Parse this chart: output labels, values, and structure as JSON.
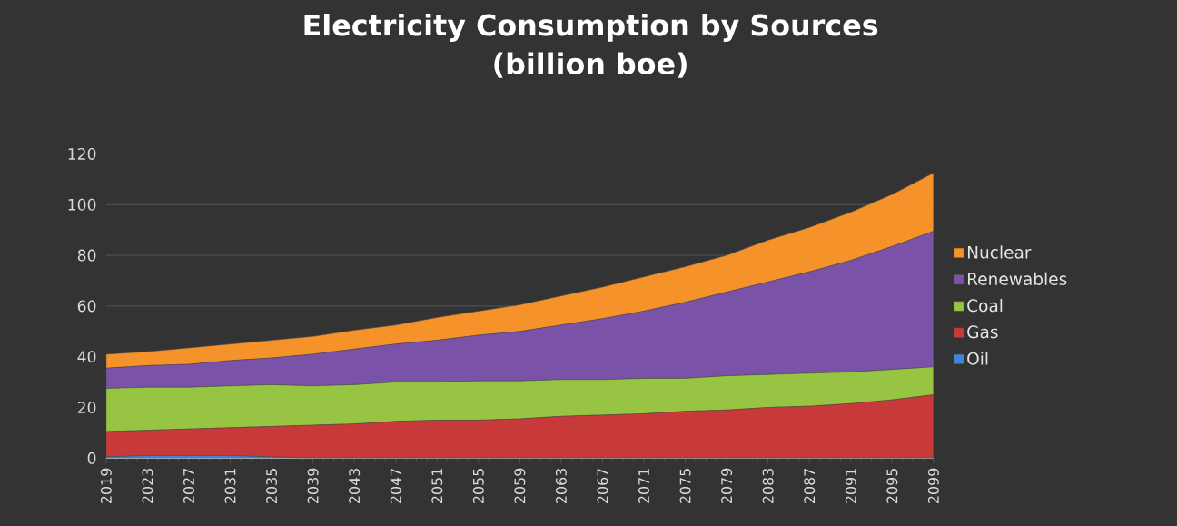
{
  "chart_data": {
    "type": "area",
    "title": "Electricity Consumption by Sources",
    "subtitle": "(billion boe)",
    "stacked": true,
    "x": [
      2019,
      2023,
      2027,
      2031,
      2035,
      2039,
      2043,
      2047,
      2051,
      2055,
      2059,
      2063,
      2067,
      2071,
      2075,
      2079,
      2083,
      2087,
      2091,
      2095,
      2099
    ],
    "series": [
      {
        "name": "Oil",
        "color": "#3f86d8",
        "values": [
          0.5,
          1,
          1,
          1,
          0.5,
          0,
          0,
          0,
          0,
          0,
          0,
          0,
          0,
          0,
          0,
          0,
          0,
          0,
          0,
          0,
          0
        ]
      },
      {
        "name": "Gas",
        "color": "#c83a3a",
        "values": [
          10,
          10,
          10.5,
          11,
          12,
          13,
          13.5,
          14.5,
          15,
          15,
          15.5,
          16.5,
          17,
          17.5,
          18.5,
          19,
          20,
          20.5,
          21.5,
          23,
          25
        ]
      },
      {
        "name": "Coal",
        "color": "#98c443",
        "values": [
          17,
          17,
          16.5,
          16.5,
          16.5,
          15.5,
          15.5,
          15.5,
          15,
          15.5,
          15,
          14.5,
          14,
          14,
          13,
          13.5,
          13,
          13,
          12.5,
          12,
          11
        ]
      },
      {
        "name": "Renewables",
        "color": "#7a52a8",
        "values": [
          8,
          8.5,
          9,
          10,
          10.5,
          12.5,
          14,
          15,
          16.5,
          18,
          19.5,
          21.5,
          24,
          26.5,
          30,
          33,
          36.5,
          40,
          44,
          48.5,
          53.5
        ]
      },
      {
        "name": "Nuclear",
        "color": "#f5922a",
        "values": [
          5.5,
          5.5,
          6.5,
          6.5,
          7,
          7,
          7.5,
          7.5,
          9,
          9.5,
          10.5,
          11.5,
          12.5,
          13.5,
          14,
          14.5,
          16.5,
          17.5,
          19,
          20.5,
          23
        ]
      }
    ],
    "xlim": [
      2019,
      2099
    ],
    "xticks": [
      2019,
      2023,
      2027,
      2031,
      2035,
      2039,
      2043,
      2047,
      2051,
      2055,
      2059,
      2063,
      2067,
      2071,
      2075,
      2079,
      2083,
      2087,
      2091,
      2095,
      2099
    ],
    "ylim": [
      0,
      120
    ],
    "yticks": [
      0,
      20,
      40,
      60,
      80,
      100,
      120
    ],
    "grid": "y",
    "legend": "right"
  }
}
